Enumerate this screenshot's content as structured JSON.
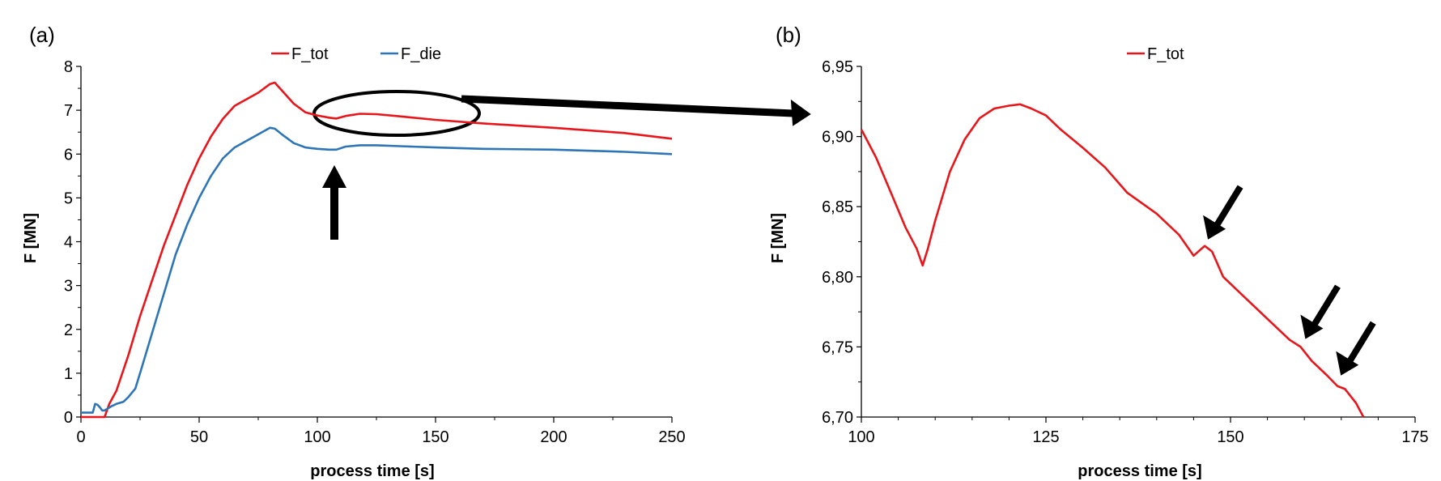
{
  "chart_data": [
    {
      "type": "line",
      "panel_label": "(a)",
      "xlabel": "process time [s]",
      "ylabel": "F [MN]",
      "xlim": [
        0,
        250
      ],
      "ylim": [
        0,
        8
      ],
      "xticks": [
        0,
        50,
        100,
        150,
        200,
        250
      ],
      "yticks": [
        0,
        1,
        2,
        3,
        4,
        5,
        6,
        7,
        8
      ],
      "xtick_labels": [
        "0",
        "50",
        "100",
        "150",
        "200",
        "250"
      ],
      "ytick_labels": [
        "0",
        "1",
        "2",
        "3",
        "4",
        "5",
        "6",
        "7",
        "8"
      ],
      "legend_position": "top-center",
      "series": [
        {
          "name": "F_tot",
          "color": "#e8161b",
          "x": [
            0,
            10,
            12,
            15,
            20,
            25,
            30,
            35,
            40,
            45,
            50,
            55,
            60,
            65,
            70,
            75,
            80,
            82,
            85,
            90,
            95,
            100,
            105,
            108,
            112,
            118,
            125,
            135,
            150,
            170,
            200,
            230,
            250
          ],
          "y": [
            0,
            0,
            0.3,
            0.6,
            1.4,
            2.3,
            3.1,
            3.9,
            4.6,
            5.3,
            5.9,
            6.4,
            6.8,
            7.1,
            7.25,
            7.4,
            7.6,
            7.63,
            7.45,
            7.15,
            6.95,
            6.88,
            6.83,
            6.81,
            6.87,
            6.92,
            6.91,
            6.86,
            6.78,
            6.7,
            6.6,
            6.48,
            6.35
          ]
        },
        {
          "name": "F_die",
          "color": "#2e75b6",
          "x": [
            0,
            3,
            5,
            6,
            7,
            8,
            9,
            10,
            13,
            15,
            18,
            20,
            23,
            25,
            30,
            35,
            40,
            45,
            50,
            55,
            60,
            65,
            70,
            75,
            80,
            82,
            85,
            90,
            95,
            100,
            105,
            108,
            112,
            118,
            125,
            135,
            150,
            170,
            200,
            230,
            250
          ],
          "y": [
            0.1,
            0.1,
            0.1,
            0.3,
            0.28,
            0.22,
            0.15,
            0.15,
            0.25,
            0.3,
            0.35,
            0.45,
            0.65,
            1.0,
            1.9,
            2.8,
            3.7,
            4.4,
            5.0,
            5.5,
            5.9,
            6.15,
            6.3,
            6.45,
            6.6,
            6.58,
            6.45,
            6.25,
            6.15,
            6.12,
            6.1,
            6.1,
            6.17,
            6.2,
            6.2,
            6.18,
            6.15,
            6.12,
            6.1,
            6.05,
            6.0
          ]
        }
      ],
      "annotations": [
        "ellipse around dip region (~100–170 s)",
        "up arrow at ~107 s",
        "arrow pointing to panel (b)"
      ]
    },
    {
      "type": "line",
      "panel_label": "(b)",
      "xlabel": "process time [s]",
      "ylabel": "F [MN]",
      "xlim": [
        100,
        175
      ],
      "ylim": [
        6.7,
        6.95
      ],
      "xticks": [
        100,
        125,
        150,
        175
      ],
      "yticks": [
        6.7,
        6.75,
        6.8,
        6.85,
        6.9,
        6.95
      ],
      "xtick_labels": [
        "100",
        "125",
        "150",
        "175"
      ],
      "ytick_labels": [
        "6,70",
        "6,75",
        "6,80",
        "6,85",
        "6,90",
        "6,95"
      ],
      "legend_position": "top-center",
      "series": [
        {
          "name": "F_tot",
          "color": "#e8161b",
          "x": [
            100,
            102,
            104,
            106,
            107.5,
            108.3,
            109,
            110,
            112,
            114,
            116,
            118,
            120,
            121.5,
            123,
            125,
            127,
            130,
            133,
            136,
            140,
            143,
            145,
            146.5,
            147.5,
            149,
            152,
            155,
            158,
            159.5,
            161,
            163,
            164.5,
            165.5,
            167,
            168
          ],
          "y": [
            6.905,
            6.885,
            6.86,
            6.835,
            6.82,
            6.808,
            6.82,
            6.84,
            6.875,
            6.898,
            6.913,
            6.92,
            6.922,
            6.923,
            6.92,
            6.915,
            6.905,
            6.892,
            6.878,
            6.86,
            6.845,
            6.83,
            6.815,
            6.822,
            6.818,
            6.8,
            6.785,
            6.77,
            6.755,
            6.75,
            6.74,
            6.73,
            6.722,
            6.72,
            6.71,
            6.7
          ]
        }
      ],
      "annotations": [
        "down-left arrows at ~146.5 s, ~160 s, ~164.5 s"
      ]
    }
  ]
}
